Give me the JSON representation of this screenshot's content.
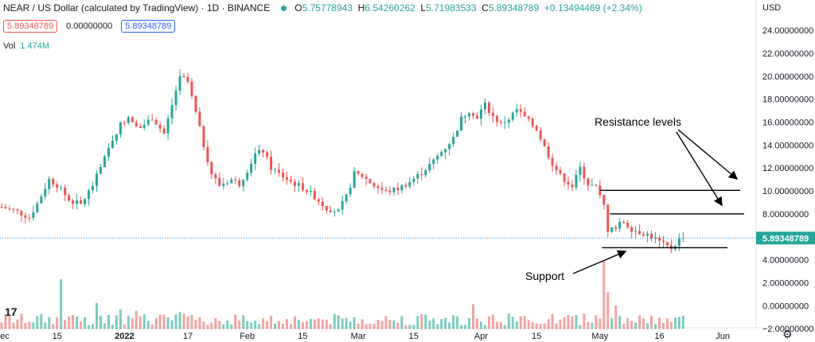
{
  "header": {
    "title": "NEAR / US Dollar (calculated by TradingView) · 1D · BINANCE",
    "ohlc": [
      {
        "k": "O",
        "v": "5.75778943"
      },
      {
        "k": "H",
        "v": "6.54260262"
      },
      {
        "k": "L",
        "v": "5.71983533"
      },
      {
        "k": "C",
        "v": "5.89348789"
      },
      {
        "k": "",
        "v": "+0.13494469 (+2.34%)"
      }
    ],
    "pill_bid": "5.89348789",
    "pill_spread": "0.00000000",
    "pill_ask": "5.89348789",
    "vol_label": "Vol",
    "vol_value": "1.474M",
    "currency": "USD",
    "tv_logo": "17"
  },
  "colors": {
    "up": "#26a69a",
    "down": "#ef5350",
    "up_vol": "#7ccbbf",
    "down_vol": "#f2a3a1",
    "price_line": "#2196f3"
  },
  "chart_data": {
    "type": "candlestick",
    "title": "NEAR / US Dollar (calculated by TradingView) · 1D · BINANCE",
    "y_ticks": [
      -2,
      0,
      2,
      4,
      6,
      8,
      10,
      12,
      14,
      16,
      18,
      20,
      22,
      24
    ],
    "y_tick_labels": [
      "−2.00000000",
      "0.00000000",
      "2.00000000",
      "4.00000000",
      "6.00000000",
      "8.00000000",
      "10.00000000",
      "12.00000000",
      "14.00000000",
      "16.00000000",
      "18.00000000",
      "20.00000000",
      "22.00000000",
      "24.00000000"
    ],
    "ylim": [
      -2.2,
      25.4
    ],
    "x_tick_labels": [
      "Dec",
      "15",
      "2022",
      "17",
      "Feb",
      "15",
      "Mar",
      "15",
      "Apr",
      "15",
      "May",
      "16",
      "Jun"
    ],
    "x_tick_days": [
      0,
      14,
      31,
      47,
      62,
      76,
      90,
      104,
      121,
      135,
      151,
      166,
      182
    ],
    "last_price": 5.89348789,
    "last_price_label": "5.89348789",
    "annotations": [
      {
        "text": "Resistance levels"
      },
      {
        "text": "Support"
      }
    ],
    "levels": [
      {
        "kind": "resistance",
        "price": 10.05
      },
      {
        "kind": "resistance",
        "price": 8.0
      },
      {
        "kind": "support",
        "price": 5.05
      }
    ],
    "close_path": [
      [
        0,
        8.6
      ],
      [
        4,
        8.2
      ],
      [
        7,
        7.7
      ],
      [
        9,
        8.9
      ],
      [
        12,
        11.0
      ],
      [
        14,
        10.5
      ],
      [
        17,
        9.2
      ],
      [
        20,
        8.8
      ],
      [
        23,
        10.5
      ],
      [
        26,
        12.8
      ],
      [
        28,
        14.5
      ],
      [
        30,
        15.8
      ],
      [
        32,
        16.5
      ],
      [
        35,
        15.5
      ],
      [
        38,
        16.4
      ],
      [
        41,
        15.0
      ],
      [
        43,
        17.5
      ],
      [
        45,
        20.0
      ],
      [
        47,
        19.5
      ],
      [
        49,
        16.8
      ],
      [
        51,
        14.0
      ],
      [
        53,
        11.5
      ],
      [
        55,
        10.5
      ],
      [
        58,
        11.0
      ],
      [
        60,
        10.6
      ],
      [
        62,
        11.8
      ],
      [
        64,
        13.2
      ],
      [
        66,
        13.5
      ],
      [
        68,
        12.0
      ],
      [
        70,
        11.5
      ],
      [
        73,
        10.8
      ],
      [
        76,
        10.3
      ],
      [
        79,
        9.5
      ],
      [
        82,
        8.5
      ],
      [
        85,
        8.2
      ],
      [
        87,
        9.5
      ],
      [
        89,
        11.5
      ],
      [
        91,
        11.3
      ],
      [
        94,
        10.5
      ],
      [
        97,
        9.9
      ],
      [
        100,
        10.2
      ],
      [
        103,
        10.8
      ],
      [
        106,
        11.6
      ],
      [
        109,
        12.6
      ],
      [
        112,
        13.8
      ],
      [
        114,
        14.6
      ],
      [
        116,
        16.3
      ],
      [
        118,
        17.0
      ],
      [
        120,
        16.5
      ],
      [
        122,
        17.5
      ],
      [
        124,
        16.5
      ],
      [
        126,
        15.8
      ],
      [
        128,
        16.3
      ],
      [
        130,
        17.1
      ],
      [
        132,
        16.4
      ],
      [
        135,
        15.4
      ],
      [
        137,
        13.8
      ],
      [
        139,
        12.4
      ],
      [
        141,
        11.3
      ],
      [
        144,
        10.4
      ],
      [
        146,
        12.0
      ],
      [
        148,
        10.6
      ],
      [
        150,
        10.3
      ],
      [
        152,
        8.7
      ],
      [
        153,
        6.6
      ],
      [
        155,
        6.9
      ],
      [
        157,
        7.3
      ],
      [
        159,
        6.7
      ],
      [
        161,
        6.4
      ],
      [
        163,
        6.2
      ],
      [
        165,
        5.8
      ],
      [
        167,
        5.3
      ],
      [
        169,
        5.0
      ],
      [
        171,
        5.75
      ],
      [
        172,
        5.89
      ]
    ],
    "volume_spikes": [
      [
        15,
        3.8
      ],
      [
        24,
        2.0
      ],
      [
        30,
        1.5
      ],
      [
        34,
        1.4
      ],
      [
        45,
        1.3
      ],
      [
        119,
        1.9
      ],
      [
        152,
        5.2
      ],
      [
        153,
        2.8
      ],
      [
        155,
        1.8
      ]
    ]
  }
}
